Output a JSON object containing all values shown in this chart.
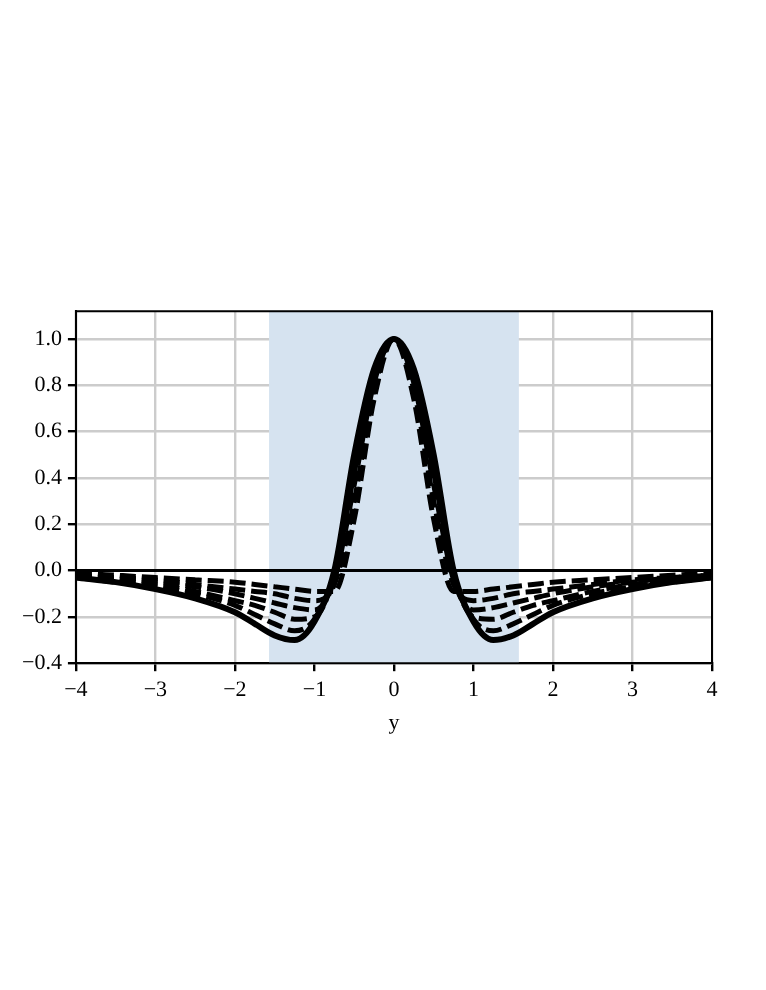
{
  "chart_data": {
    "type": "line",
    "xlabel": "y",
    "x": [
      -4,
      -3.5,
      -3,
      -2.5,
      -2,
      -1.75,
      -1.5,
      -1.25,
      -1,
      -0.75,
      -0.5,
      -0.25,
      0,
      0.25,
      0.5,
      0.75,
      1,
      1.25,
      1.5,
      1.75,
      2,
      2.5,
      3,
      3.5,
      4
    ],
    "series": [
      {
        "color": "#000000",
        "line_style": "dashed",
        "values": [
          -0.01,
          -0.02,
          -0.03,
          -0.04,
          -0.05,
          -0.06,
          -0.07,
          -0.08,
          -0.09,
          -0.09,
          0.22,
          0.74,
          1,
          0.74,
          0.22,
          -0.09,
          -0.09,
          -0.08,
          -0.07,
          -0.06,
          -0.05,
          -0.04,
          -0.03,
          -0.02,
          -0.01
        ]
      },
      {
        "color": "#000000",
        "line_style": "dashed",
        "values": [
          -0.02,
          -0.03,
          -0.04,
          -0.06,
          -0.08,
          -0.09,
          -0.1,
          -0.12,
          -0.13,
          -0.06,
          0.3,
          0.78,
          1,
          0.78,
          0.3,
          -0.06,
          -0.13,
          -0.12,
          -0.1,
          -0.09,
          -0.08,
          -0.06,
          -0.04,
          -0.03,
          -0.02
        ]
      },
      {
        "color": "#000000",
        "line_style": "dashed",
        "values": [
          -0.02,
          -0.03,
          -0.05,
          -0.07,
          -0.1,
          -0.12,
          -0.14,
          -0.16,
          -0.17,
          -0.04,
          0.37,
          0.81,
          1,
          0.81,
          0.37,
          -0.04,
          -0.17,
          -0.16,
          -0.14,
          -0.12,
          -0.1,
          -0.07,
          -0.05,
          -0.03,
          -0.02
        ]
      },
      {
        "color": "#000000",
        "line_style": "dashed",
        "values": [
          -0.03,
          -0.04,
          -0.06,
          -0.09,
          -0.13,
          -0.15,
          -0.18,
          -0.21,
          -0.2,
          -0.02,
          0.42,
          0.83,
          1,
          0.83,
          0.42,
          -0.02,
          -0.2,
          -0.21,
          -0.18,
          -0.15,
          -0.13,
          -0.09,
          -0.06,
          -0.04,
          -0.03
        ]
      },
      {
        "color": "#000000",
        "line_style": "dashed",
        "values": [
          -0.03,
          -0.05,
          -0.07,
          -0.1,
          -0.15,
          -0.19,
          -0.23,
          -0.26,
          -0.21,
          -0.01,
          0.46,
          0.85,
          1,
          0.85,
          0.46,
          -0.01,
          -0.21,
          -0.26,
          -0.23,
          -0.19,
          -0.15,
          -0.1,
          -0.07,
          -0.05,
          -0.03
        ]
      },
      {
        "color": "#000000",
        "line_style": "solid",
        "values": [
          -0.03,
          -0.05,
          -0.08,
          -0.12,
          -0.18,
          -0.23,
          -0.28,
          -0.3,
          -0.22,
          0,
          0.5,
          0.87,
          1,
          0.87,
          0.5,
          0,
          -0.22,
          -0.3,
          -0.28,
          -0.23,
          -0.18,
          -0.12,
          -0.08,
          -0.05,
          -0.03
        ]
      }
    ],
    "xlim": [
      -4,
      4
    ],
    "xticks": [
      {
        "value": -4,
        "label": "−4"
      },
      {
        "value": -3,
        "label": "−3"
      },
      {
        "value": -2,
        "label": "−2"
      },
      {
        "value": -1,
        "label": "−1"
      },
      0,
      1,
      2,
      3,
      4
    ],
    "ylim": [
      -0.4,
      1.12
    ],
    "yticks": [
      {
        "value": -0.4,
        "label": "−0.4"
      },
      {
        "value": -0.2,
        "label": "−0.2"
      },
      {
        "value": 0,
        "label": "0.0"
      },
      0.2,
      0.4,
      0.6,
      0.8,
      {
        "value": 1,
        "label": "1.0"
      }
    ],
    "bands": [
      {
        "axis": "x",
        "from": -1.571,
        "to": 1.571,
        "color": "#d6e3f0"
      }
    ],
    "ref_lines": [
      {
        "axis": "y",
        "value": 0,
        "color": "#000000"
      }
    ],
    "grid": true,
    "legend": false,
    "marker": "none"
  }
}
